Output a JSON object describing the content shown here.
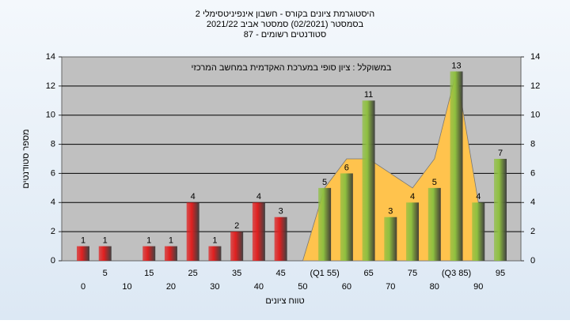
{
  "chart_data": {
    "type": "bar",
    "title": "היסטוגרמת ציונים בקורס - חשבון אינפיניטסימלי 2",
    "subtitle": "בסמסטר  (02/2021)  סמסטר אביב 2021/22",
    "subtitle2": "סטודנטים רשומים - 87",
    "annotation": "במשוקלל : ציון סופי במערכת האקדמית במחשב המרכזי",
    "y_label": "מספר סטודנטים",
    "x_label": "טווח ציונים",
    "categories": [
      "0",
      "5",
      "10",
      "15",
      "20",
      "25",
      "30",
      "35",
      "40",
      "45",
      "50",
      "(Q1 55)",
      "60",
      "65",
      "70",
      "75",
      "80",
      "(Q3 85)",
      "90",
      "95"
    ],
    "values": [
      1,
      1,
      null,
      1,
      1,
      4,
      1,
      2,
      4,
      3,
      null,
      5,
      6,
      11,
      3,
      4,
      5,
      13,
      4,
      7
    ],
    "colors": [
      "#e02020",
      "#e02020",
      "#e02020",
      "#e02020",
      "#e02020",
      "#e02020",
      "#e02020",
      "#e02020",
      "#e02020",
      "#e02020",
      "#e02020",
      "#8fc040",
      "#8fc040",
      "#8fc040",
      "#8fc040",
      "#8fc040",
      "#8fc040",
      "#8fc040",
      "#8fc040",
      "#8fc040"
    ],
    "area": {
      "color": "#ffc34d",
      "values": [
        null,
        null,
        null,
        null,
        null,
        null,
        null,
        null,
        null,
        null,
        0,
        5,
        7,
        7,
        6,
        5,
        7,
        13,
        4,
        null
      ]
    },
    "ylim": [
      0,
      14
    ],
    "yticks": [
      0,
      2,
      4,
      6,
      8,
      10,
      12,
      14
    ],
    "y2lim": [
      0,
      14
    ],
    "y2ticks": [
      0,
      2,
      4,
      6,
      8,
      10,
      12,
      14
    ],
    "grid": true
  }
}
